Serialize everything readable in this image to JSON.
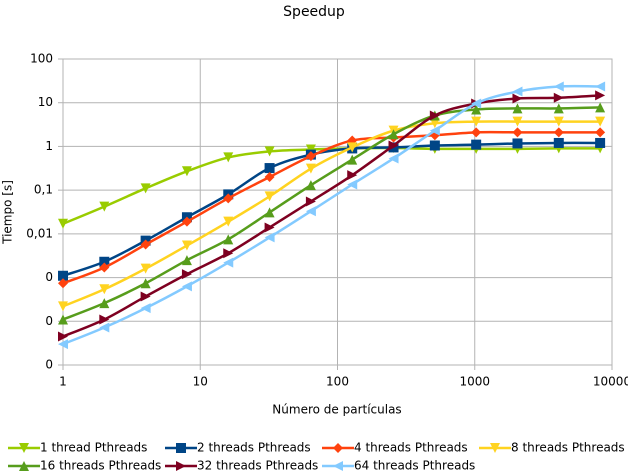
{
  "chart_data": {
    "type": "line",
    "title": "Speedup",
    "x_label": "Número de partículas",
    "y_label": "Tiempo [s]",
    "x": [
      1,
      2,
      4,
      8,
      16,
      32,
      64,
      128,
      256,
      512,
      1024,
      2048,
      4096,
      8192
    ],
    "xscale": "log",
    "yscale": "log",
    "grid": true,
    "legend": "bottom",
    "xlim": [
      1,
      10000
    ],
    "xticks": [
      1,
      10,
      100,
      1000,
      10000
    ],
    "ylim": [
      1e-05,
      100
    ],
    "yticks": [
      {
        "value": 1e-05,
        "label": "0"
      },
      {
        "value": 0.0001,
        "label": "0"
      },
      {
        "value": 0.001,
        "label": "0"
      },
      {
        "value": 0.01,
        "label": "0,01"
      },
      {
        "value": 0.1,
        "label": "0,1"
      },
      1,
      10,
      100
    ],
    "series": [
      {
        "name": "1 thread Pthreads",
        "color": "#99cc00",
        "marker": "triangle-down",
        "values": [
          0.017,
          0.042,
          0.11,
          0.27,
          0.56,
          0.77,
          0.85,
          0.9,
          0.92,
          0.88,
          0.88,
          0.88,
          0.9,
          0.9
        ]
      },
      {
        "name": "2 threads Pthreads",
        "color": "#004586",
        "marker": "square",
        "values": [
          0.0011,
          0.0023,
          0.007,
          0.024,
          0.08,
          0.32,
          0.65,
          0.9,
          0.95,
          1.05,
          1.1,
          1.17,
          1.2,
          1.2
        ]
      },
      {
        "name": "4 threads Pthreads",
        "color": "#ff420e",
        "marker": "diamond",
        "values": [
          0.00074,
          0.0017,
          0.0057,
          0.019,
          0.065,
          0.2,
          0.6,
          1.37,
          1.6,
          1.8,
          2.1,
          2.1,
          2.1,
          2.1
        ]
      },
      {
        "name": "8 threads Pthreads",
        "color": "#ffd320",
        "marker": "triangle-down",
        "values": [
          0.00022,
          0.00054,
          0.0016,
          0.0054,
          0.019,
          0.072,
          0.31,
          0.95,
          2.3,
          3.4,
          3.7,
          3.7,
          3.7,
          3.7
        ]
      },
      {
        "name": "16 threads Pthreads",
        "color": "#579d1c",
        "marker": "triangle-up",
        "values": [
          0.00011,
          0.00026,
          0.00074,
          0.0025,
          0.0075,
          0.031,
          0.13,
          0.5,
          1.9,
          5.1,
          7,
          7.4,
          7.4,
          7.8
        ]
      },
      {
        "name": "32 threads Pthreads",
        "color": "#7e0021",
        "marker": "triangle-right",
        "values": [
          4.5e-05,
          0.00011,
          0.00037,
          0.0012,
          0.0036,
          0.014,
          0.055,
          0.22,
          1.05,
          5.1,
          9.6,
          12.5,
          13,
          14.7
        ]
      },
      {
        "name": "64 threads Pthreads",
        "color": "#83caff",
        "marker": "triangle-left",
        "values": [
          3e-05,
          7.2e-05,
          0.0002,
          0.00063,
          0.0022,
          0.0083,
          0.033,
          0.135,
          0.53,
          2.3,
          9.6,
          18,
          23.5,
          23.5
        ]
      }
    ]
  }
}
